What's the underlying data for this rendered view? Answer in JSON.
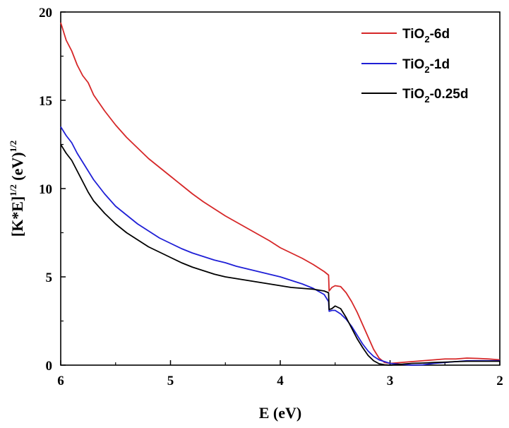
{
  "chart_data": {
    "type": "line",
    "xlabel": "E (eV)",
    "ylabel": {
      "main": "[K*E]",
      "exp1": "1/2",
      "unit": " (eV)",
      "exp2": "1/2"
    },
    "xlim": [
      6,
      2
    ],
    "ylim": [
      0,
      20
    ],
    "x_ticks": [
      "6",
      "5",
      "4",
      "3",
      "2"
    ],
    "y_ticks": [
      "0",
      "5",
      "10",
      "15",
      "20"
    ],
    "grid": false,
    "legend_position": "top-right",
    "series": [
      {
        "name": "TiO2-6d",
        "name_parts": [
          "TiO",
          "2",
          "-6d"
        ],
        "color": "#d62728",
        "x": [
          6.0,
          5.95,
          5.9,
          5.85,
          5.8,
          5.75,
          5.7,
          5.6,
          5.5,
          5.4,
          5.3,
          5.2,
          5.1,
          5.0,
          4.9,
          4.8,
          4.7,
          4.6,
          4.5,
          4.4,
          4.3,
          4.2,
          4.1,
          4.0,
          3.9,
          3.8,
          3.7,
          3.6,
          3.56,
          3.555,
          3.53,
          3.5,
          3.45,
          3.4,
          3.35,
          3.3,
          3.25,
          3.2,
          3.15,
          3.1,
          3.05,
          3.0,
          2.9,
          2.8,
          2.7,
          2.6,
          2.5,
          2.4,
          2.3,
          2.2,
          2.1,
          2.0
        ],
        "y": [
          19.4,
          18.4,
          17.8,
          17.0,
          16.4,
          16.0,
          15.3,
          14.4,
          13.6,
          12.9,
          12.3,
          11.7,
          11.2,
          10.7,
          10.2,
          9.7,
          9.25,
          8.85,
          8.45,
          8.1,
          7.75,
          7.4,
          7.05,
          6.65,
          6.35,
          6.05,
          5.7,
          5.3,
          5.1,
          4.2,
          4.4,
          4.5,
          4.45,
          4.1,
          3.6,
          3.0,
          2.3,
          1.6,
          0.9,
          0.4,
          0.15,
          0.1,
          0.15,
          0.2,
          0.25,
          0.3,
          0.35,
          0.35,
          0.4,
          0.38,
          0.35,
          0.3
        ]
      },
      {
        "name": "TiO2-1d",
        "name_parts": [
          "TiO",
          "2",
          "-1d"
        ],
        "color": "#1f1fd6",
        "x": [
          6.0,
          5.95,
          5.9,
          5.85,
          5.8,
          5.75,
          5.7,
          5.6,
          5.5,
          5.4,
          5.3,
          5.2,
          5.1,
          5.0,
          4.9,
          4.8,
          4.7,
          4.6,
          4.5,
          4.4,
          4.3,
          4.2,
          4.1,
          4.0,
          3.9,
          3.8,
          3.7,
          3.6,
          3.56,
          3.555,
          3.53,
          3.5,
          3.45,
          3.4,
          3.35,
          3.3,
          3.25,
          3.2,
          3.15,
          3.1,
          3.05,
          3.0,
          2.9,
          2.8,
          2.7,
          2.6,
          2.5,
          2.4,
          2.3,
          2.2,
          2.1,
          2.0
        ],
        "y": [
          13.5,
          13.0,
          12.6,
          12.0,
          11.5,
          11.0,
          10.5,
          9.7,
          9.0,
          8.5,
          8.0,
          7.6,
          7.2,
          6.9,
          6.6,
          6.35,
          6.15,
          5.95,
          5.8,
          5.6,
          5.45,
          5.3,
          5.15,
          5.0,
          4.8,
          4.6,
          4.35,
          4.0,
          3.6,
          3.05,
          3.1,
          3.1,
          2.9,
          2.6,
          2.2,
          1.7,
          1.2,
          0.8,
          0.5,
          0.3,
          0.2,
          0.1,
          0.05,
          0.0,
          0.02,
          0.1,
          0.15,
          0.2,
          0.25,
          0.25,
          0.25,
          0.25
        ]
      },
      {
        "name": "TiO2-0.25d",
        "name_parts": [
          "TiO",
          "2",
          "-0.25d"
        ],
        "color": "#000000",
        "x": [
          6.0,
          5.95,
          5.9,
          5.85,
          5.8,
          5.75,
          5.7,
          5.6,
          5.5,
          5.4,
          5.3,
          5.2,
          5.1,
          5.0,
          4.9,
          4.8,
          4.7,
          4.6,
          4.5,
          4.4,
          4.3,
          4.2,
          4.1,
          4.0,
          3.9,
          3.8,
          3.7,
          3.6,
          3.56,
          3.555,
          3.53,
          3.5,
          3.45,
          3.4,
          3.35,
          3.3,
          3.25,
          3.2,
          3.15,
          3.1,
          3.05,
          3.0,
          2.9,
          2.8,
          2.7,
          2.6,
          2.5,
          2.4,
          2.3,
          2.2,
          2.1,
          2.0
        ],
        "y": [
          12.5,
          12.0,
          11.6,
          11.0,
          10.4,
          9.8,
          9.3,
          8.6,
          8.0,
          7.5,
          7.1,
          6.7,
          6.4,
          6.1,
          5.8,
          5.55,
          5.35,
          5.15,
          5.0,
          4.9,
          4.8,
          4.7,
          4.6,
          4.5,
          4.4,
          4.35,
          4.3,
          4.2,
          4.1,
          3.15,
          3.2,
          3.35,
          3.2,
          2.7,
          2.1,
          1.5,
          1.0,
          0.55,
          0.25,
          0.08,
          0.02,
          0.0,
          0.05,
          0.1,
          0.12,
          0.15,
          0.17,
          0.2,
          0.22,
          0.22,
          0.22,
          0.22
        ]
      }
    ]
  }
}
